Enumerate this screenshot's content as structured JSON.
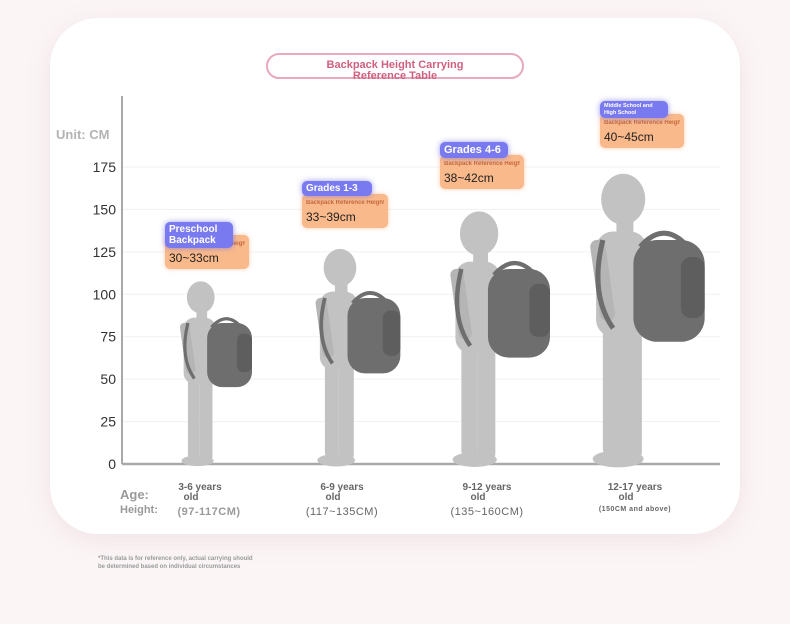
{
  "title_line1": "Backpack Height Carrying",
  "title_line2": "Reference Table",
  "unit_label": "Unit: CM",
  "age_label": "Age:",
  "height_label": "Height:",
  "footnote_line1": "*This data is for reference only, actual carrying should",
  "footnote_line2": "be determined based on individual circumstances",
  "colors": {
    "figure": "#c2c2c2",
    "backpack": "#6e6e6e",
    "grade_badge": "#7a7af0",
    "ref_badge": "#f9b98a",
    "title_accent": "#d0607f"
  },
  "chart_data": {
    "type": "bar",
    "ylim": [
      0,
      200
    ],
    "yticks": [
      0,
      25,
      50,
      75,
      100,
      125,
      150,
      175
    ],
    "grid": true,
    "categories": [
      {
        "grade": "Preschool Backpack",
        "age": "3-6 years",
        "age_suffix": "old",
        "height": "(97-117CM)",
        "ref_label": "Backpack Reference Height",
        "ref_value": "30~33cm",
        "figure_height": 107
      },
      {
        "grade": "Grades 1-3",
        "age": "6-9 years",
        "age_suffix": "old",
        "height": "(117~135CM)",
        "ref_label": "Backpack Reference Height",
        "ref_value": "33~39cm",
        "figure_height": 126
      },
      {
        "grade": "Grades 4-6",
        "age": "9-12 years",
        "age_suffix": "old",
        "height": "(135~160CM)",
        "ref_label": "Backpack Reference Height",
        "ref_value": "38~42cm",
        "figure_height": 148
      },
      {
        "grade": "Middle School and High School",
        "age": "12-17 years",
        "age_suffix": "old",
        "height": "(150CM and above)",
        "ref_label": "Backpack Reference Height",
        "ref_value": "40~45cm",
        "figure_height": 170
      }
    ]
  }
}
